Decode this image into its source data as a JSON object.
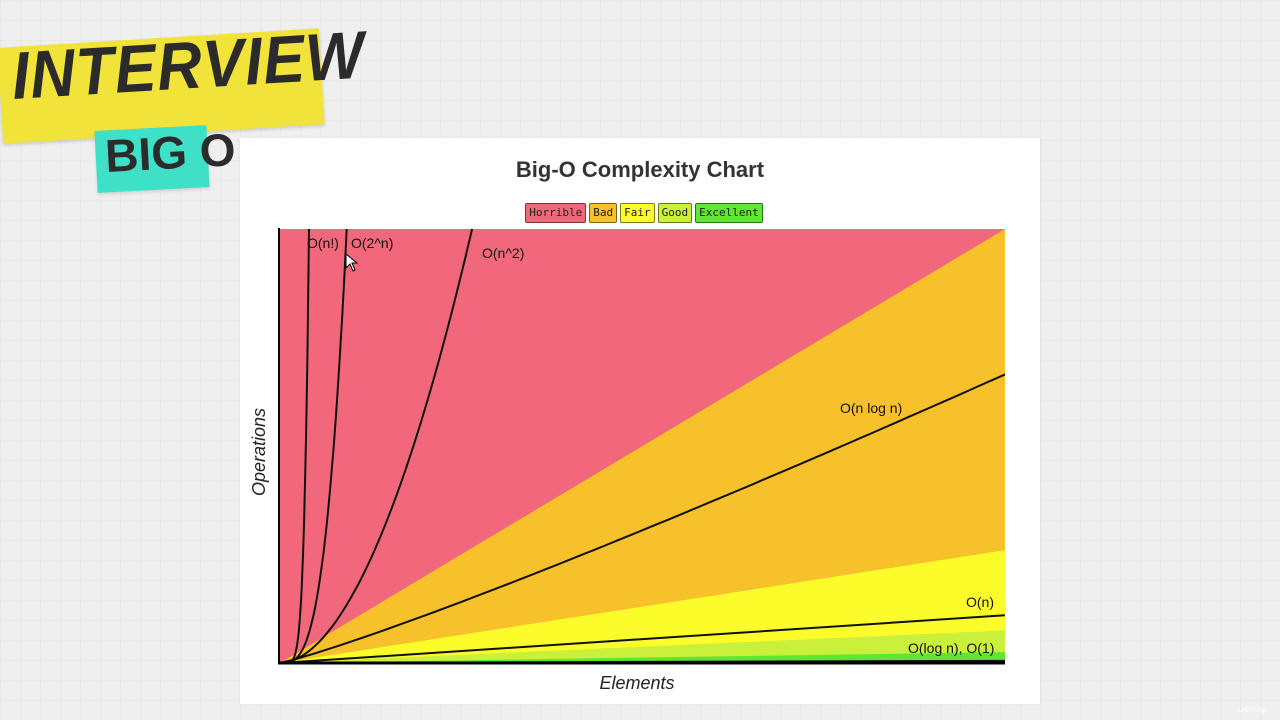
{
  "banner": {
    "title": "INTERVIEW",
    "subtitle": "BIG O"
  },
  "watermark": "Udemy",
  "chart_data": {
    "type": "area",
    "title": "Big-O Complexity Chart",
    "xlabel": "Elements",
    "ylabel": "Operations",
    "grid": false,
    "legend_position": "top-center",
    "legend": [
      {
        "name": "Horrible",
        "color": "#f0687a"
      },
      {
        "name": "Bad",
        "color": "#f6c12a"
      },
      {
        "name": "Fair",
        "color": "#fcfc2b"
      },
      {
        "name": "Good",
        "color": "#c9f03a"
      },
      {
        "name": "Excellent",
        "color": "#5fe632"
      }
    ],
    "xlim": [
      0,
      100
    ],
    "ylim": [
      0,
      100
    ],
    "regions": [
      {
        "name": "Horrible",
        "color": "#f0687a",
        "upper_at_x_max": 100
      },
      {
        "name": "Bad",
        "color": "#f6c12a",
        "upper_at_x_max": 100
      },
      {
        "name": "Fair",
        "color": "#fcfc2b",
        "upper_at_x_max": 26
      },
      {
        "name": "Good",
        "color": "#c9f03a",
        "upper_at_x_max": 7.5
      },
      {
        "name": "Excellent",
        "color": "#5fe632",
        "upper_at_x_max": 2.5
      }
    ],
    "series": [
      {
        "name": "O(n!)",
        "label": "O(n!)"
      },
      {
        "name": "O(2^n)",
        "label": "O(2^n)"
      },
      {
        "name": "O(n^2)",
        "label": "O(n^2)"
      },
      {
        "name": "O(n log n)",
        "label": "O(n log n)",
        "y_at_x_max": 66.5
      },
      {
        "name": "O(n)",
        "label": "O(n)",
        "y_at_x_max": 11
      },
      {
        "name": "O(log n), O(1)",
        "label": "O(log n), O(1)",
        "y_at_x_max": 0.5
      }
    ]
  }
}
